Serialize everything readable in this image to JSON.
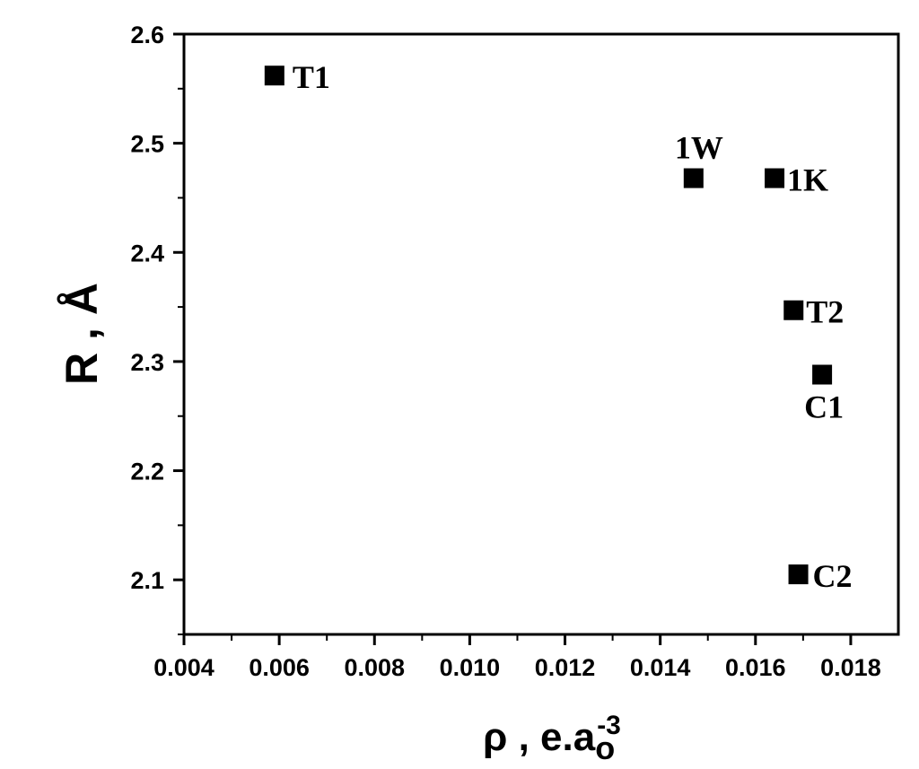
{
  "chart_data": {
    "type": "scatter",
    "title": "",
    "xlabel": "ρ , e.a",
    "xlabel_unit_base": "o",
    "xlabel_unit_exp": "-3",
    "ylabel": "R , Å",
    "xlim": [
      0.004,
      0.019
    ],
    "ylim": [
      2.05,
      2.6
    ],
    "xticks": [
      "0.004",
      "0.006",
      "0.008",
      "0.010",
      "0.012",
      "0.014",
      "0.016",
      "0.018"
    ],
    "yticks": [
      "2.1",
      "2.2",
      "2.3",
      "2.4",
      "2.5",
      "2.6"
    ],
    "grid": false,
    "legend": "none",
    "marker": "square",
    "marker_color": "#000000",
    "points": [
      {
        "label": "T1",
        "x": 0.0059,
        "y": 2.562
      },
      {
        "label": "1W",
        "x": 0.0147,
        "y": 2.468
      },
      {
        "label": "1K",
        "x": 0.0164,
        "y": 2.468
      },
      {
        "label": "T2",
        "x": 0.0168,
        "y": 2.347
      },
      {
        "label": "C1",
        "x": 0.0174,
        "y": 2.288
      },
      {
        "label": "C2",
        "x": 0.0169,
        "y": 2.105
      }
    ]
  }
}
